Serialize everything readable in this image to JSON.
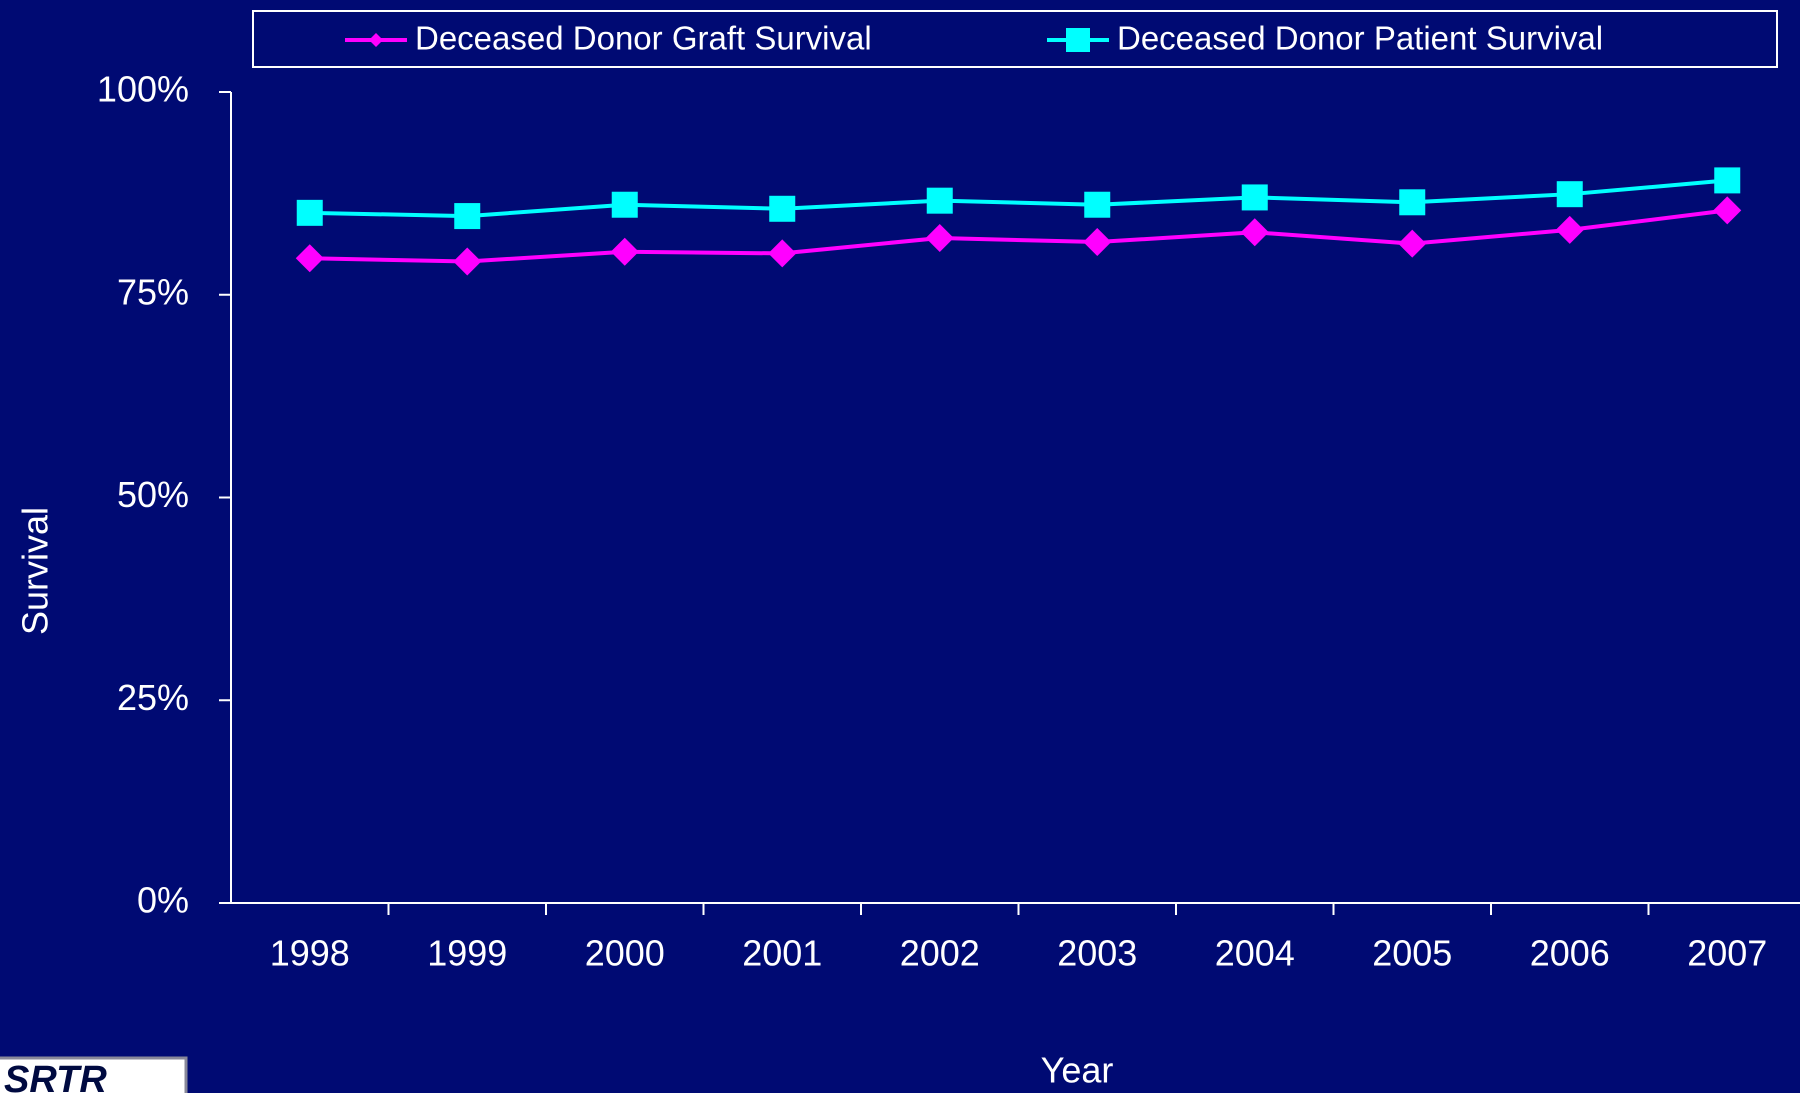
{
  "chart_data": {
    "type": "line",
    "categories": [
      "1998",
      "1999",
      "2000",
      "2001",
      "2002",
      "2003",
      "2004",
      "2005",
      "2006",
      "2007"
    ],
    "series": [
      {
        "name": "Deceased Donor Graft Survival",
        "color": "#ff00ff",
        "marker": "diamond",
        "values": [
          79.5,
          79.1,
          80.3,
          80.1,
          82.0,
          81.5,
          82.7,
          81.3,
          83.0,
          85.4
        ]
      },
      {
        "name": "Deceased Donor Patient Survival",
        "color": "#00ffff",
        "marker": "square",
        "values": [
          85.1,
          84.7,
          86.1,
          85.6,
          86.6,
          86.1,
          87.0,
          86.4,
          87.4,
          89.1
        ]
      }
    ],
    "ylabel": "Survival",
    "xlabel": "Year",
    "ylim": [
      0,
      100
    ],
    "yticks": [
      {
        "value": 0,
        "label": "0%"
      },
      {
        "value": 25,
        "label": "25%"
      },
      {
        "value": 50,
        "label": "50%"
      },
      {
        "value": 75,
        "label": "75%"
      },
      {
        "value": 100,
        "label": "100%"
      }
    ],
    "legend": "top",
    "logo": "SRTR"
  }
}
